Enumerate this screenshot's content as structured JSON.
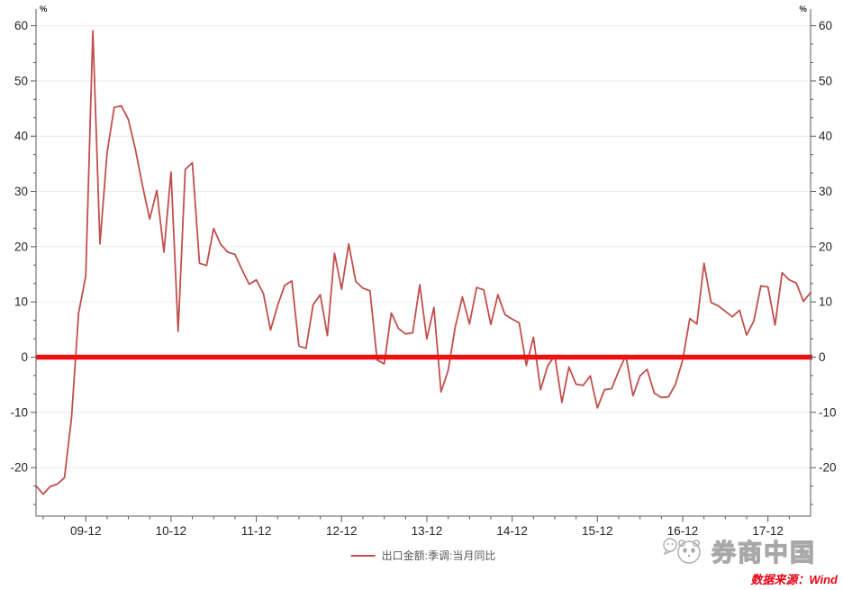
{
  "chart": {
    "legend_label": "出口金额:季调:当月同比",
    "brand": "券商中国",
    "source_note": "数据来源：Wind",
    "unit_left": "%",
    "unit_right": "%",
    "colors": {
      "series": "#c0504d",
      "zero_line": "#ee1111",
      "grid": "#ececec",
      "axis": "#595959",
      "tick_label": "#262626",
      "legend_text": "#595959",
      "source_text": "#e60012",
      "brand_outline": "#a8a8a8"
    }
  },
  "chart_data": {
    "type": "line",
    "title": "",
    "x_start": "2009-05",
    "x_end": "2018-06",
    "x_freq": "monthly",
    "x_tick_labels": [
      "09-12",
      "10-12",
      "11-12",
      "12-12",
      "13-12",
      "14-12",
      "15-12",
      "16-12",
      "17-12"
    ],
    "y_ticks": [
      -20,
      -10,
      0,
      10,
      20,
      30,
      40,
      50,
      60
    ],
    "ylim": [
      -28.5,
      63
    ],
    "ylabel": "%",
    "grid": "horizontal",
    "legend_position": "bottom",
    "zero_baseline_highlight": true,
    "series": [
      {
        "name": "出口金额:季调:当月同比",
        "values": [
          -23.3,
          -24.8,
          -23.4,
          -23.0,
          -21.8,
          -11.0,
          8.0,
          14.7,
          59.1,
          20.5,
          37.0,
          45.2,
          45.5,
          43.0,
          37.5,
          31.0,
          25.0,
          30.2,
          19.0,
          33.5,
          4.7,
          34.0,
          35.2,
          17.0,
          16.6,
          23.3,
          20.4,
          19.0,
          18.6,
          15.8,
          13.2,
          14.0,
          11.5,
          4.9,
          9.4,
          13.0,
          13.8,
          2.0,
          1.6,
          9.5,
          11.3,
          3.9,
          18.8,
          12.3,
          20.5,
          13.7,
          12.5,
          12.0,
          -0.5,
          -1.2,
          8.0,
          5.2,
          4.2,
          4.4,
          13.1,
          3.3,
          9.0,
          -6.3,
          -2.4,
          5.5,
          10.9,
          6.0,
          12.6,
          12.2,
          5.9,
          11.3,
          7.7,
          6.9,
          6.2,
          -1.5,
          3.6,
          -5.9,
          -1.6,
          0.3,
          -8.2,
          -1.8,
          -4.9,
          -5.1,
          -3.4,
          -9.2,
          -5.9,
          -5.7,
          -2.5,
          0.3,
          -7.0,
          -3.4,
          -2.2,
          -6.5,
          -7.3,
          -7.2,
          -4.9,
          -0.5,
          7.0,
          6.0,
          17.0,
          9.9,
          9.3,
          8.3,
          7.3,
          8.5,
          4.0,
          6.5,
          12.9,
          12.7,
          5.8,
          15.3,
          14.0,
          13.4,
          10.1,
          11.7
        ]
      }
    ]
  }
}
